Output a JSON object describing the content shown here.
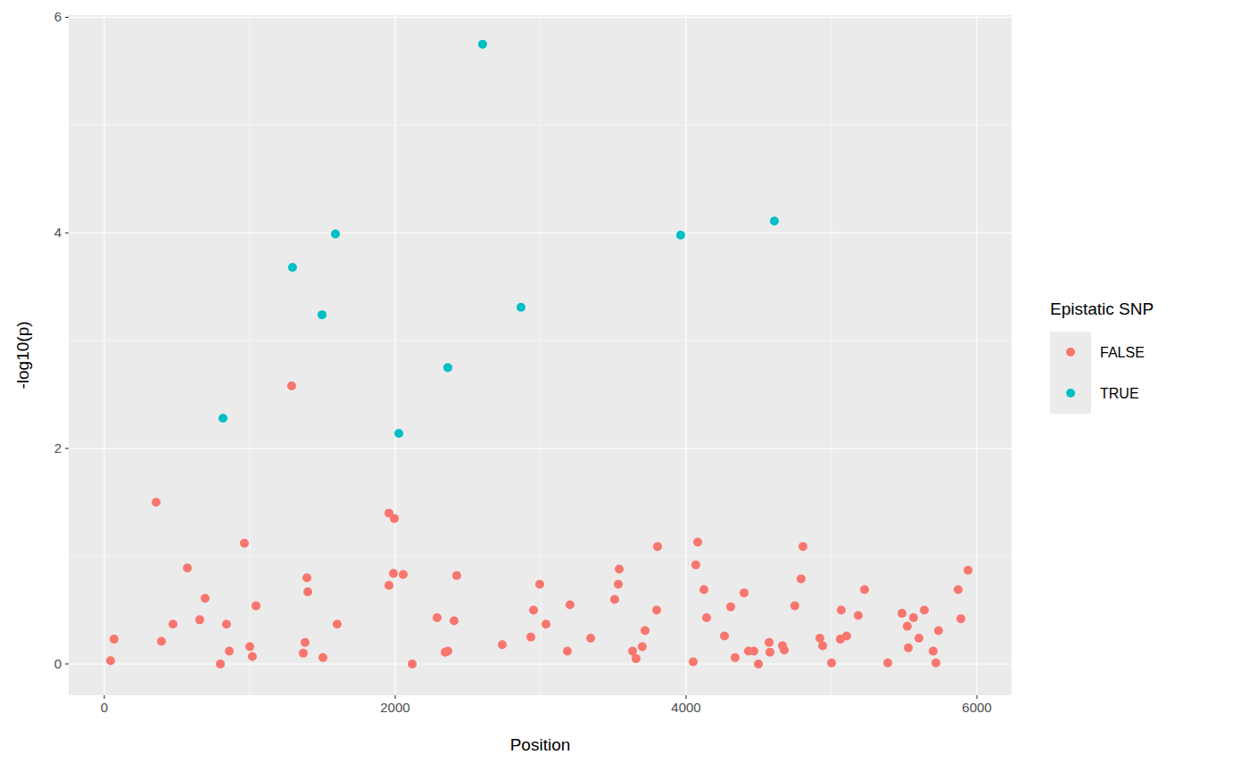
{
  "chart_data": {
    "type": "scatter",
    "x_label": "Position",
    "y_label": "-log10(p)",
    "legend_title": "Epistatic SNP",
    "legend": "right",
    "grid": true,
    "xlim": [
      -245,
      6239
    ],
    "ylim": [
      -0.29,
      6.02
    ],
    "xticks": [
      0,
      2000,
      4000,
      6000
    ],
    "yticks": [
      0,
      2,
      4,
      6
    ],
    "series": [
      {
        "name": "FALSE",
        "color": "#F8766D",
        "marker": "circle",
        "x": [
          43,
          67,
          356,
          393,
          472,
          571,
          656,
          693,
          798,
          840,
          859,
          963,
          1000,
          1018,
          1043,
          1288,
          1368,
          1380,
          1393,
          1399,
          1503,
          1601,
          1957,
          1994,
          1957,
          1988,
          2055,
          2117,
          2288,
          2344,
          2362,
          2405,
          2423,
          2736,
          2933,
          2951,
          2994,
          3037,
          3184,
          3202,
          3344,
          3509,
          3534,
          3540,
          3632,
          3656,
          3699,
          3718,
          3798,
          3804,
          4049,
          4067,
          4080,
          4123,
          4141,
          4264,
          4307,
          4337,
          4399,
          4429,
          4466,
          4497,
          4571,
          4577,
          4663,
          4675,
          4748,
          4791,
          4804,
          4920,
          4939,
          5000,
          5061,
          5067,
          5104,
          5184,
          5227,
          5387,
          5485,
          5521,
          5528,
          5564,
          5601,
          5638,
          5699,
          5718,
          5736,
          5871,
          5890,
          5939
        ],
        "values": [
          0.03,
          0.23,
          1.5,
          0.21,
          0.37,
          0.89,
          0.41,
          0.61,
          0.0,
          0.37,
          0.12,
          1.12,
          0.16,
          0.07,
          0.54,
          2.58,
          0.1,
          0.2,
          0.8,
          0.67,
          0.06,
          0.37,
          1.4,
          1.35,
          0.73,
          0.84,
          0.83,
          0.0,
          0.43,
          0.11,
          0.12,
          0.4,
          0.82,
          0.18,
          0.25,
          0.5,
          0.74,
          0.37,
          0.12,
          0.55,
          0.24,
          0.6,
          0.74,
          0.88,
          0.12,
          0.05,
          0.16,
          0.31,
          0.5,
          1.09,
          0.02,
          0.92,
          1.13,
          0.69,
          0.43,
          0.26,
          0.53,
          0.06,
          0.66,
          0.12,
          0.12,
          0.0,
          0.2,
          0.11,
          0.17,
          0.13,
          0.54,
          0.79,
          1.09,
          0.24,
          0.17,
          0.01,
          0.23,
          0.5,
          0.26,
          0.45,
          0.69,
          0.01,
          0.47,
          0.35,
          0.15,
          0.43,
          0.24,
          0.5,
          0.12,
          0.01,
          0.31,
          0.69,
          0.42,
          0.87
        ]
      },
      {
        "name": "TRUE",
        "color": "#00BFC4",
        "marker": "circle",
        "x": [
          2601,
          1589,
          1294,
          1497,
          2865,
          2362,
          2025,
          816,
          3963,
          4607
        ],
        "values": [
          5.75,
          3.99,
          3.68,
          3.24,
          3.31,
          2.75,
          2.14,
          2.28,
          3.98,
          4.11
        ]
      }
    ]
  }
}
